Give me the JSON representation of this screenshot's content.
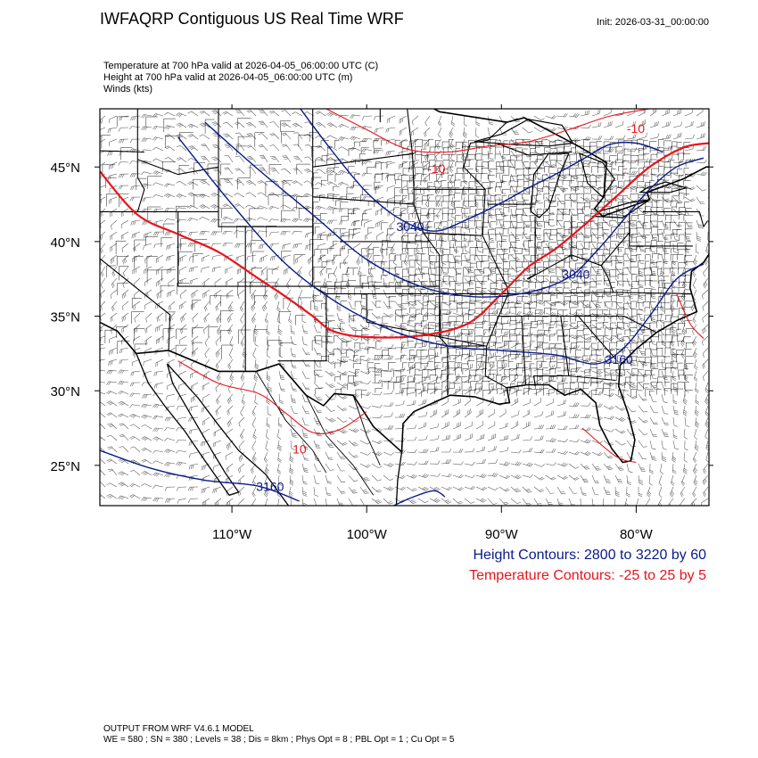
{
  "header": {
    "title": "IWFAQRP Contiguous US Real Time WRF",
    "init": "Init: 2026-03-31_00:00:00",
    "subtitles": [
      "Temperature at 700 hPa valid at 2026-04-05_06:00:00 UTC   (C)",
      "Height at 700 hPa valid at 2026-04-05_06:00:00 UTC   (m)",
      "Winds   (kts)"
    ]
  },
  "map": {
    "projection": "lat-lon",
    "lon_range": [
      -119.8,
      -74.6
    ],
    "lat_range": [
      22.3,
      48.9
    ],
    "lon_ticks": [
      {
        "lon": -110,
        "label": "110°W"
      },
      {
        "lon": -100,
        "label": "100°W"
      },
      {
        "lon": -90,
        "label": "90°W"
      },
      {
        "lon": -80,
        "label": "80°W"
      }
    ],
    "lat_ticks": [
      {
        "lat": 45,
        "label": "45°N"
      },
      {
        "lat": 40,
        "label": "40°N"
      },
      {
        "lat": 35,
        "label": "35°N"
      },
      {
        "lat": 30,
        "label": "30°N"
      },
      {
        "lat": 25,
        "label": "25°N"
      }
    ],
    "colors": {
      "height": "#0a1a8a",
      "temperature": "#e8141c",
      "boundaries": "#000000",
      "barbs": "#555555"
    },
    "height_contours": [
      {
        "level": 3040,
        "points": [
          [
            -105,
            49
          ],
          [
            -102.5,
            46
          ],
          [
            -100,
            43.3
          ],
          [
            -97.5,
            41.5
          ],
          [
            -95,
            40.7
          ],
          [
            -92.5,
            41.5
          ],
          [
            -90,
            42.6
          ],
          [
            -88,
            43.6
          ],
          [
            -86,
            44.5
          ],
          [
            -84,
            45.5
          ],
          [
            -82,
            46.5
          ],
          [
            -80,
            46.6
          ],
          [
            -78,
            46
          ]
        ]
      },
      {
        "level": 3100,
        "points": [
          [
            -112,
            48
          ],
          [
            -108,
            44.8
          ],
          [
            -104,
            41.8
          ],
          [
            -100,
            38.8
          ],
          [
            -96,
            37
          ],
          [
            -92,
            36.3
          ],
          [
            -88,
            36.6
          ],
          [
            -85,
            37.6
          ],
          [
            -83,
            39.3
          ],
          [
            -81,
            41.4
          ],
          [
            -79,
            43.5
          ],
          [
            -77,
            45
          ],
          [
            -75,
            45.6
          ]
        ]
      },
      {
        "level": 3160,
        "points": [
          [
            -114,
            47
          ],
          [
            -110,
            42.5
          ],
          [
            -106,
            38.5
          ],
          [
            -102,
            35.8
          ],
          [
            -98,
            34
          ],
          [
            -94,
            33
          ],
          [
            -90,
            32.7
          ],
          [
            -86,
            32.4
          ],
          [
            -83,
            31.8
          ],
          [
            -81,
            32.8
          ],
          [
            -79,
            35
          ],
          [
            -77,
            37.5
          ],
          [
            -75,
            38.5
          ]
        ]
      },
      {
        "level": 3160,
        "points": [
          [
            -119.8,
            26
          ],
          [
            -116,
            24.8
          ],
          [
            -112,
            24
          ],
          [
            -108,
            23.6
          ],
          [
            -105,
            22.6
          ]
        ]
      },
      {
        "level": 3100,
        "points": [
          [
            -98,
            22.3
          ],
          [
            -96.5,
            22.9
          ],
          [
            -95,
            23.3
          ],
          [
            -94.2,
            22.9
          ]
        ]
      }
    ],
    "height_labels": [
      {
        "text": "3040",
        "lon": -97.8,
        "lat": 40.7
      },
      {
        "text": "3040",
        "lon": -85.5,
        "lat": 37.5
      },
      {
        "text": "3160",
        "lon": -82.3,
        "lat": 31.8
      },
      {
        "text": "3160",
        "lon": -108.2,
        "lat": 23.3
      }
    ],
    "temperature_contours": [
      {
        "level": 0,
        "points": [
          [
            -119.8,
            44.7
          ],
          [
            -117,
            41.8
          ],
          [
            -114,
            40.5
          ],
          [
            -111,
            39.3
          ],
          [
            -108,
            37.5
          ],
          [
            -106,
            36.3
          ],
          [
            -104,
            35
          ],
          [
            -102.5,
            34
          ],
          [
            -100,
            33.6
          ],
          [
            -96,
            33.7
          ],
          [
            -92.5,
            34.5
          ],
          [
            -90,
            36.5
          ],
          [
            -88,
            38.3
          ],
          [
            -86,
            39.5
          ],
          [
            -84,
            41
          ],
          [
            -81.5,
            43
          ],
          [
            -79,
            45
          ],
          [
            -76.5,
            46.3
          ],
          [
            -74.6,
            46.6
          ]
        ]
      },
      {
        "level": -10,
        "points": [
          [
            -103,
            48.9
          ],
          [
            -100,
            47.5
          ],
          [
            -97,
            46.2
          ],
          [
            -94,
            46
          ],
          [
            -91,
            46.4
          ],
          [
            -88,
            46.7
          ],
          [
            -85,
            47.5
          ],
          [
            -82,
            48.4
          ],
          [
            -79,
            48.9
          ]
        ]
      },
      {
        "level": 5,
        "points": [
          [
            -114,
            32
          ],
          [
            -111,
            30.5
          ],
          [
            -108,
            29.8
          ],
          [
            -106,
            28.5
          ],
          [
            -104,
            27.2
          ],
          [
            -102,
            27.4
          ],
          [
            -100,
            28.6
          ]
        ]
      },
      {
        "level": 5,
        "points": [
          [
            -84,
            27.5
          ],
          [
            -81.5,
            25.6
          ],
          [
            -80,
            25.2
          ]
        ]
      },
      {
        "level": 5,
        "points": [
          [
            -77,
            36.5
          ],
          [
            -76,
            34.5
          ],
          [
            -75,
            33.5
          ]
        ]
      }
    ],
    "temperature_labels": [
      {
        "text": "-10",
        "lon": -80.7,
        "lat": 47.3
      },
      {
        "text": "-10",
        "lon": -95.5,
        "lat": 44.6
      },
      {
        "text": "10",
        "lon": -105.5,
        "lat": 25.8
      }
    ]
  },
  "legend": {
    "height": "Height Contours: 2800 to 3220 by 60",
    "temperature": "Temperature Contours: -25 to 25 by 5"
  },
  "footer": {
    "line1": "OUTPUT FROM WRF V4.6.1 MODEL",
    "line2": "WE = 580 ; SN = 380 ; Levels = 38 ; Dis = 8km ; Phys Opt = 8 ; PBL Opt = 1 ; Cu Opt = 5"
  }
}
